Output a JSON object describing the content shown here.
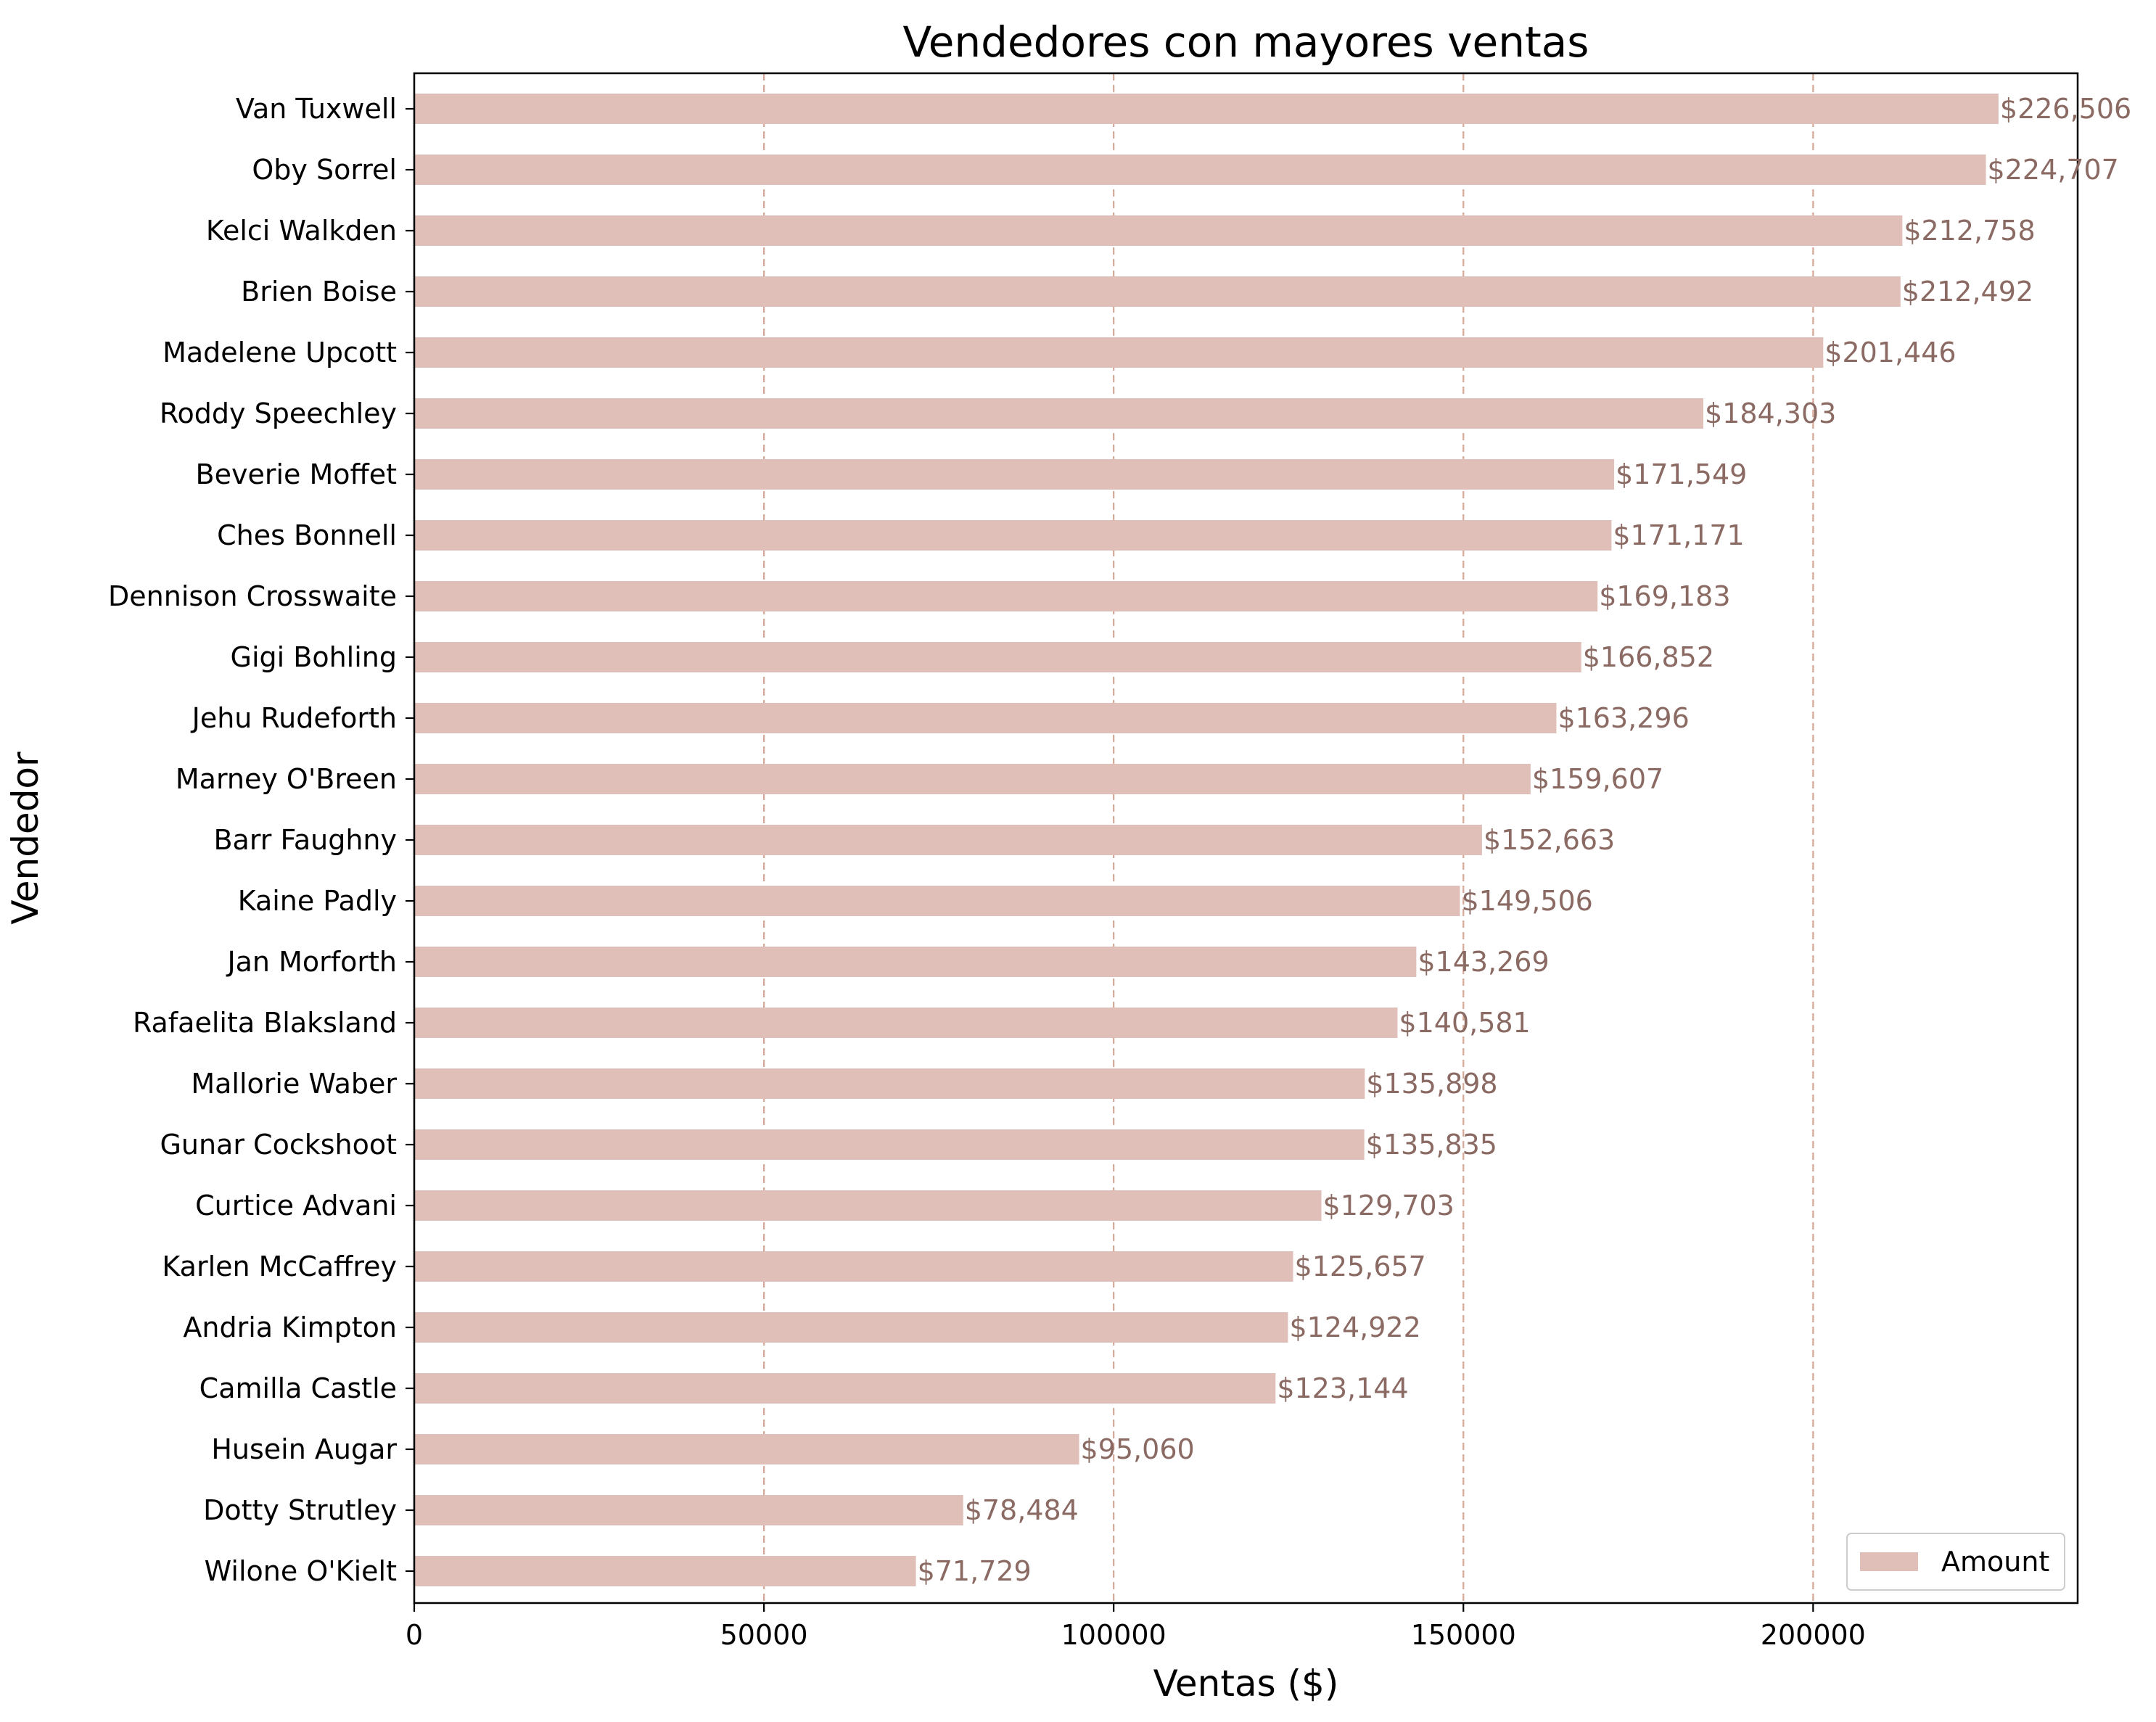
{
  "chart_data": {
    "type": "bar",
    "orientation": "horizontal",
    "title": "Vendedores con mayores ventas",
    "xlabel": "Ventas ($)",
    "ylabel": "Vendedor",
    "xlim": [
      0,
      237822
    ],
    "xticks": [
      0,
      50000,
      100000,
      150000,
      200000
    ],
    "xtick_labels": [
      "0",
      "50000",
      "100000",
      "150000",
      "200000"
    ],
    "grid": "x-dashed",
    "legend": {
      "position": "bottom-right",
      "entries": [
        "Amount"
      ]
    },
    "colors": {
      "bar": "#dfbfb7",
      "value_label": "#8a6a62",
      "grid": "#d4a797",
      "axis": "#000000"
    },
    "categories": [
      "Van Tuxwell",
      "Oby Sorrel",
      "Kelci Walkden",
      "Brien Boise",
      "Madelene Upcott",
      "Roddy Speechley",
      "Beverie Moffet",
      "Ches Bonnell",
      "Dennison Crosswaite",
      "Gigi Bohling",
      "Jehu Rudeforth",
      "Marney O'Breen",
      "Barr Faughny",
      "Kaine Padly",
      "Jan Morforth",
      "Rafaelita Blaksland",
      "Mallorie Waber",
      "Gunar Cockshoot",
      "Curtice Advani",
      "Karlen McCaffrey",
      "Andria Kimpton",
      "Camilla Castle",
      "Husein Augar",
      "Dotty Strutley",
      "Wilone O'Kielt"
    ],
    "series": [
      {
        "name": "Amount",
        "values": [
          226506,
          224707,
          212758,
          212492,
          201446,
          184303,
          171549,
          171171,
          169183,
          166852,
          163296,
          159607,
          152663,
          149506,
          143269,
          140581,
          135898,
          135835,
          129703,
          125657,
          124922,
          123144,
          95060,
          78484,
          71729
        ]
      }
    ],
    "value_labels": [
      "$226,506",
      "$224,707",
      "$212,758",
      "$212,492",
      "$201,446",
      "$184,303",
      "$171,549",
      "$171,171",
      "$169,183",
      "$166,852",
      "$163,296",
      "$159,607",
      "$152,663",
      "$149,506",
      "$143,269",
      "$140,581",
      "$135,898",
      "$135,835",
      "$129,703",
      "$125,657",
      "$124,922",
      "$123,144",
      "$95,060",
      "$78,484",
      "$71,729"
    ]
  }
}
